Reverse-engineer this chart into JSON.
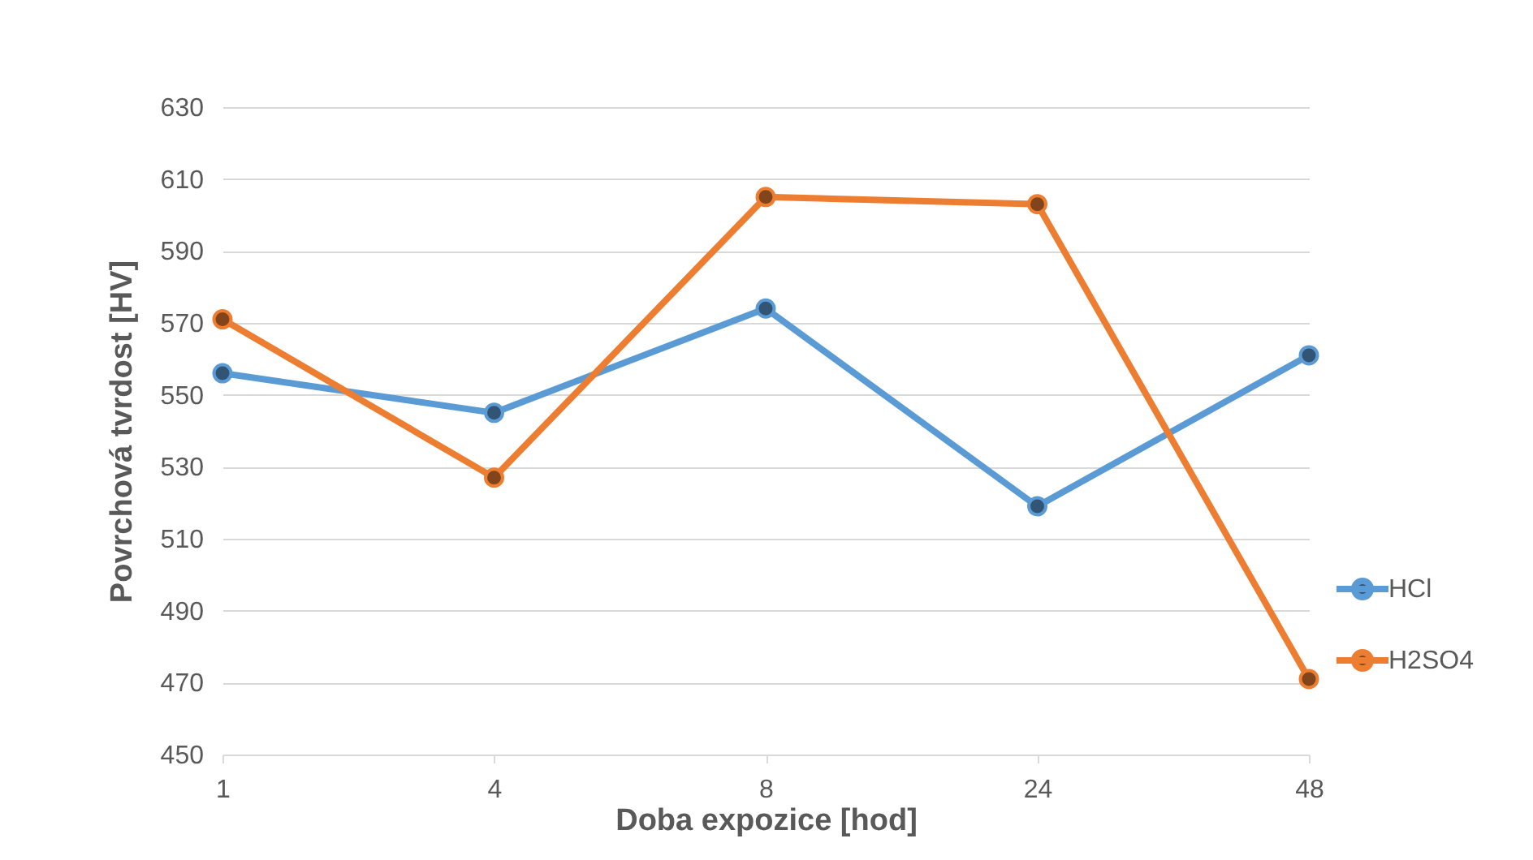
{
  "chart_data": {
    "type": "line",
    "xlabel": "Doba expozice [hod]",
    "ylabel": "Povrchová tvrdost [HV]",
    "categories": [
      "1",
      "4",
      "8",
      "24",
      "48"
    ],
    "series": [
      {
        "name": "HCl",
        "color": "#5b9bd5",
        "values": [
          556,
          545,
          574,
          519,
          561
        ]
      },
      {
        "name": "H2SO4",
        "color": "#ed7d31",
        "values": [
          571,
          527,
          605,
          603,
          471
        ]
      }
    ],
    "ylim": [
      450,
      630
    ],
    "yticks": [
      450,
      470,
      490,
      510,
      530,
      550,
      570,
      590,
      610,
      630
    ],
    "grid": "y",
    "legend": "right",
    "marker": "circle",
    "line_style": "solid"
  }
}
